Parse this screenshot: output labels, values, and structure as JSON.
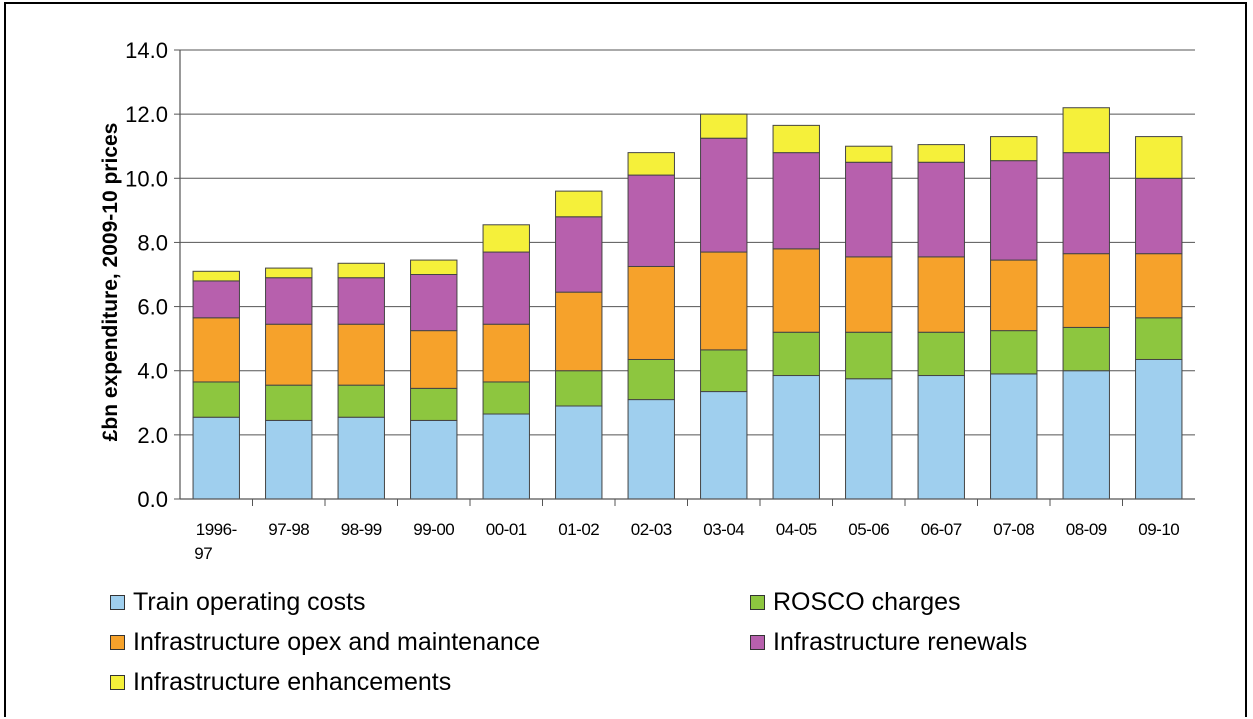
{
  "chart_data": {
    "type": "bar",
    "stacked": true,
    "ylabel": "£bn expenditure, 2009-10 prices",
    "ylim": [
      0,
      14
    ],
    "yticks": [
      "0.0",
      "2.0",
      "4.0",
      "6.0",
      "8.0",
      "10.0",
      "12.0",
      "14.0"
    ],
    "grid": true,
    "legend_position": "bottom",
    "categories": [
      [
        "1996-",
        "97"
      ],
      [
        "97-98"
      ],
      [
        "98-99"
      ],
      [
        "99-00"
      ],
      [
        "00-01"
      ],
      [
        "01-02"
      ],
      [
        "02-03"
      ],
      [
        "03-04"
      ],
      [
        "04-05"
      ],
      [
        "05-06"
      ],
      [
        "06-07"
      ],
      [
        "07-08"
      ],
      [
        "08-09"
      ],
      [
        "09-10"
      ]
    ],
    "series": [
      {
        "name": "Train operating costs",
        "color": "#9fcfee",
        "values": [
          2.55,
          2.45,
          2.55,
          2.45,
          2.65,
          2.9,
          3.1,
          3.35,
          3.85,
          3.75,
          3.85,
          3.9,
          4.0,
          4.35
        ]
      },
      {
        "name": "ROSCO charges",
        "color": "#8dc63f",
        "values": [
          1.1,
          1.1,
          1.0,
          1.0,
          1.0,
          1.1,
          1.25,
          1.3,
          1.35,
          1.45,
          1.35,
          1.35,
          1.35,
          1.3
        ]
      },
      {
        "name": "Infrastructure opex and maintenance",
        "color": "#f6a22b",
        "values": [
          2.0,
          1.9,
          1.9,
          1.8,
          1.8,
          2.45,
          2.9,
          3.05,
          2.6,
          2.35,
          2.35,
          2.2,
          2.3,
          2.0
        ]
      },
      {
        "name": "Infrastructure renewals",
        "color": "#b760ad",
        "values": [
          1.15,
          1.45,
          1.45,
          1.75,
          2.25,
          2.35,
          2.85,
          3.55,
          3.0,
          2.95,
          2.95,
          3.1,
          3.15,
          2.35
        ]
      },
      {
        "name": "Infrastructure enhancements",
        "color": "#f5f03a",
        "values": [
          0.3,
          0.3,
          0.45,
          0.45,
          0.85,
          0.8,
          0.7,
          0.75,
          0.85,
          0.5,
          0.55,
          0.75,
          1.4,
          1.3
        ]
      }
    ]
  }
}
